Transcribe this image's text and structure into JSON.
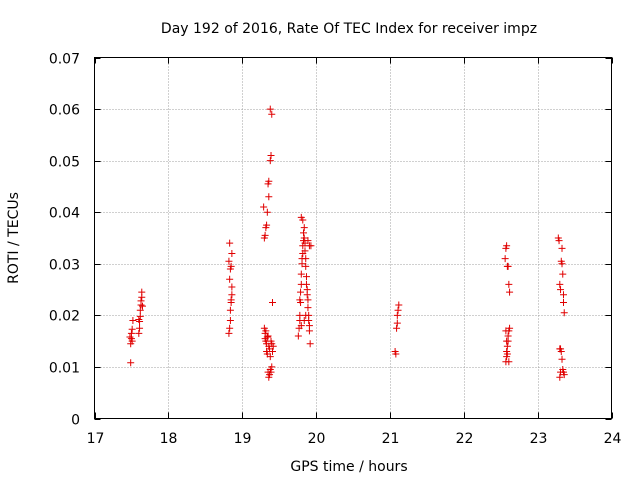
{
  "chart_data": {
    "type": "scatter",
    "title": "Day 192 of 2016, Rate Of TEC Index for receiver impz",
    "xlabel": "GPS time / hours",
    "ylabel": "ROTI / TECUs",
    "xlim": [
      17,
      24
    ],
    "ylim": [
      0,
      0.07
    ],
    "grid": true,
    "marker_color": "#e00000",
    "xticks": [
      17,
      18,
      19,
      20,
      21,
      22,
      23,
      24
    ],
    "xtick_labels": [
      "17",
      "18",
      "19",
      "20",
      "21",
      "22",
      "23",
      "24"
    ],
    "yticks": [
      0,
      0.01,
      0.02,
      0.03,
      0.04,
      0.05,
      0.06,
      0.07
    ],
    "ytick_labels": [
      "0",
      "0.01",
      "0.02",
      "0.03",
      "0.04",
      "0.05",
      "0.06",
      "0.07"
    ],
    "points": [
      [
        17.49,
        0.0108
      ],
      [
        17.49,
        0.0145
      ],
      [
        17.5,
        0.0155
      ],
      [
        17.5,
        0.0165
      ],
      [
        17.51,
        0.015
      ],
      [
        17.51,
        0.0173
      ],
      [
        17.52,
        0.019
      ],
      [
        17.48,
        0.0158
      ],
      [
        17.6,
        0.0165
      ],
      [
        17.61,
        0.0175
      ],
      [
        17.61,
        0.0188
      ],
      [
        17.62,
        0.0198
      ],
      [
        17.62,
        0.021
      ],
      [
        17.63,
        0.022
      ],
      [
        17.63,
        0.0228
      ],
      [
        17.64,
        0.0235
      ],
      [
        17.64,
        0.0245
      ],
      [
        17.6,
        0.0192
      ],
      [
        17.65,
        0.0218
      ],
      [
        18.82,
        0.0165
      ],
      [
        18.83,
        0.0175
      ],
      [
        18.84,
        0.019
      ],
      [
        18.84,
        0.021
      ],
      [
        18.85,
        0.0225
      ],
      [
        18.85,
        0.023
      ],
      [
        18.86,
        0.024
      ],
      [
        18.86,
        0.0255
      ],
      [
        18.83,
        0.027
      ],
      [
        18.84,
        0.029
      ],
      [
        18.85,
        0.0295
      ],
      [
        18.82,
        0.0305
      ],
      [
        18.86,
        0.032
      ],
      [
        18.83,
        0.034
      ],
      [
        19.29,
        0.041
      ],
      [
        19.3,
        0.035
      ],
      [
        19.31,
        0.0355
      ],
      [
        19.32,
        0.037
      ],
      [
        19.33,
        0.0375
      ],
      [
        19.34,
        0.04
      ],
      [
        19.35,
        0.0455
      ],
      [
        19.36,
        0.046
      ],
      [
        19.36,
        0.043
      ],
      [
        19.38,
        0.05
      ],
      [
        19.39,
        0.051
      ],
      [
        19.38,
        0.06
      ],
      [
        19.4,
        0.059
      ],
      [
        19.41,
        0.0225
      ],
      [
        19.3,
        0.0175
      ],
      [
        19.31,
        0.0165
      ],
      [
        19.31,
        0.0155
      ],
      [
        19.32,
        0.015
      ],
      [
        19.33,
        0.0145
      ],
      [
        19.33,
        0.013
      ],
      [
        19.34,
        0.0125
      ],
      [
        19.35,
        0.016
      ],
      [
        19.36,
        0.014
      ],
      [
        19.37,
        0.0135
      ],
      [
        19.38,
        0.012
      ],
      [
        19.39,
        0.015
      ],
      [
        19.4,
        0.0145
      ],
      [
        19.41,
        0.013
      ],
      [
        19.35,
        0.009
      ],
      [
        19.36,
        0.008
      ],
      [
        19.37,
        0.0085
      ],
      [
        19.38,
        0.0095
      ],
      [
        19.39,
        0.009
      ],
      [
        19.4,
        0.01
      ],
      [
        19.42,
        0.014
      ],
      [
        19.32,
        0.017
      ],
      [
        19.34,
        0.0158
      ],
      [
        19.76,
        0.016
      ],
      [
        19.77,
        0.0175
      ],
      [
        19.78,
        0.019
      ],
      [
        19.78,
        0.02
      ],
      [
        19.79,
        0.0225
      ],
      [
        19.79,
        0.0245
      ],
      [
        19.8,
        0.026
      ],
      [
        19.8,
        0.028
      ],
      [
        19.81,
        0.03
      ],
      [
        19.81,
        0.031
      ],
      [
        19.82,
        0.032
      ],
      [
        19.82,
        0.0335
      ],
      [
        19.83,
        0.0345
      ],
      [
        19.83,
        0.036
      ],
      [
        19.84,
        0.037
      ],
      [
        19.84,
        0.035
      ],
      [
        19.85,
        0.034
      ],
      [
        19.85,
        0.0325
      ],
      [
        19.86,
        0.031
      ],
      [
        19.86,
        0.0295
      ],
      [
        19.87,
        0.0275
      ],
      [
        19.87,
        0.026
      ],
      [
        19.88,
        0.025
      ],
      [
        19.88,
        0.024
      ],
      [
        19.89,
        0.023
      ],
      [
        19.89,
        0.0215
      ],
      [
        19.9,
        0.02
      ],
      [
        19.9,
        0.019
      ],
      [
        19.91,
        0.018
      ],
      [
        19.91,
        0.017
      ],
      [
        19.92,
        0.0145
      ],
      [
        19.8,
        0.039
      ],
      [
        19.82,
        0.0385
      ],
      [
        19.89,
        0.0345
      ],
      [
        19.91,
        0.0335
      ],
      [
        19.93,
        0.0335
      ],
      [
        19.78,
        0.023
      ],
      [
        19.8,
        0.018
      ],
      [
        19.84,
        0.019
      ],
      [
        19.86,
        0.02
      ],
      [
        21.07,
        0.013
      ],
      [
        21.08,
        0.0125
      ],
      [
        21.09,
        0.0175
      ],
      [
        21.1,
        0.0185
      ],
      [
        21.1,
        0.02
      ],
      [
        21.11,
        0.021
      ],
      [
        21.12,
        0.022
      ],
      [
        22.56,
        0.031
      ],
      [
        22.57,
        0.033
      ],
      [
        22.58,
        0.0335
      ],
      [
        22.59,
        0.0295
      ],
      [
        22.6,
        0.0295
      ],
      [
        22.61,
        0.026
      ],
      [
        22.62,
        0.0245
      ],
      [
        22.57,
        0.011
      ],
      [
        22.58,
        0.012
      ],
      [
        22.58,
        0.013
      ],
      [
        22.59,
        0.014
      ],
      [
        22.6,
        0.015
      ],
      [
        22.6,
        0.016
      ],
      [
        22.61,
        0.017
      ],
      [
        22.62,
        0.0175
      ],
      [
        22.57,
        0.017
      ],
      [
        22.58,
        0.015
      ],
      [
        22.59,
        0.0125
      ],
      [
        22.61,
        0.011
      ],
      [
        23.28,
        0.035
      ],
      [
        23.29,
        0.0345
      ],
      [
        23.3,
        0.026
      ],
      [
        23.31,
        0.025
      ],
      [
        23.32,
        0.0305
      ],
      [
        23.33,
        0.03
      ],
      [
        23.34,
        0.028
      ],
      [
        23.35,
        0.024
      ],
      [
        23.35,
        0.0225
      ],
      [
        23.36,
        0.0205
      ],
      [
        23.3,
        0.0135
      ],
      [
        23.31,
        0.0135
      ],
      [
        23.32,
        0.013
      ],
      [
        23.33,
        0.0115
      ],
      [
        23.34,
        0.0095
      ],
      [
        23.35,
        0.009
      ],
      [
        23.36,
        0.0085
      ],
      [
        23.3,
        0.008
      ],
      [
        23.31,
        0.009
      ],
      [
        23.33,
        0.033
      ]
    ]
  }
}
